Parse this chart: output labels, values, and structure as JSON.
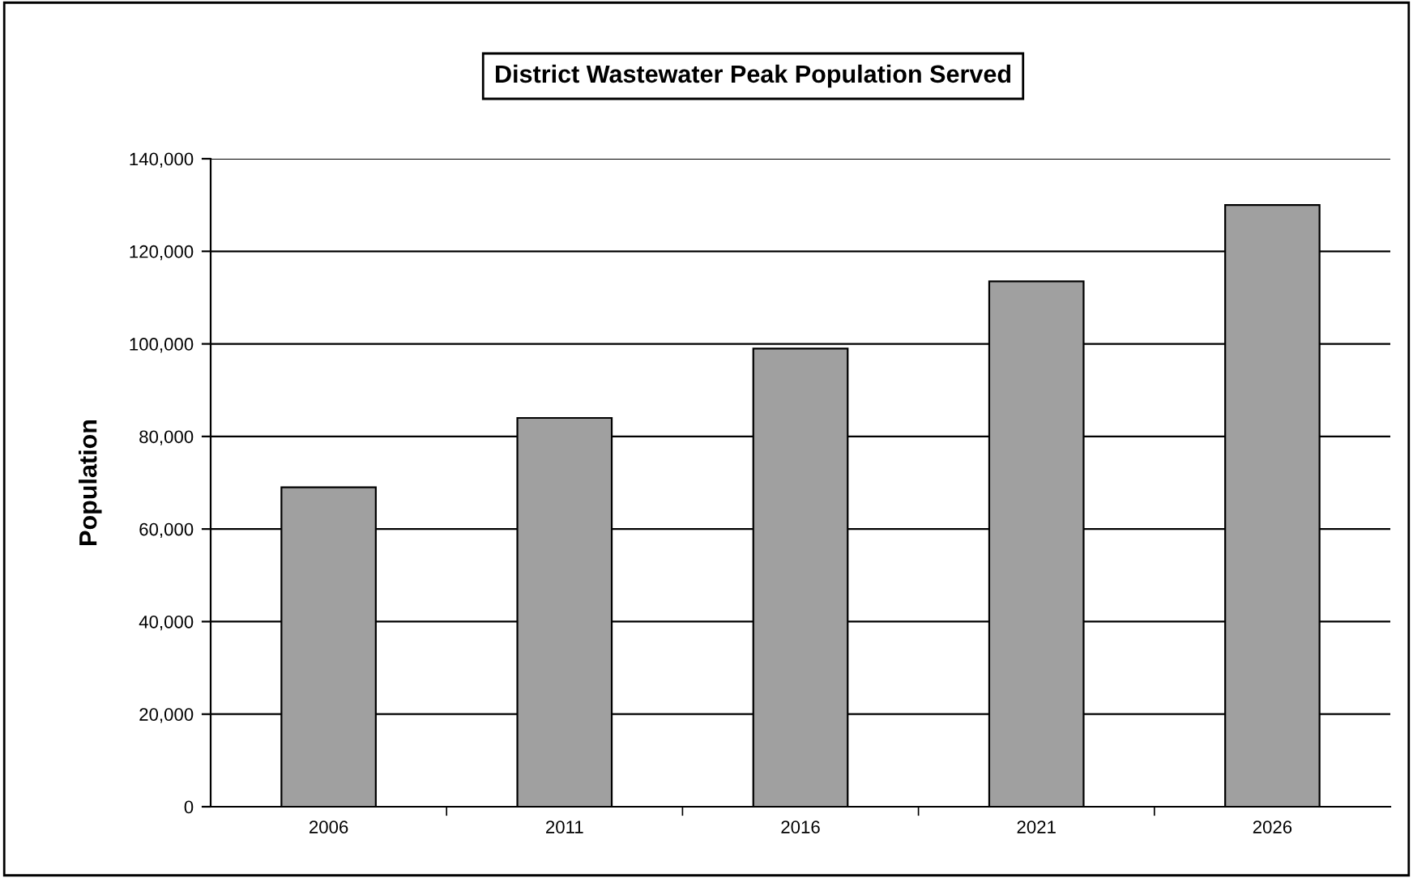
{
  "chart_data": {
    "type": "bar",
    "title": "District Wastewater Peak Population Served",
    "ylabel": "Population",
    "categories": [
      "2006",
      "2011",
      "2016",
      "2021",
      "2026"
    ],
    "values": [
      69000,
      84000,
      99000,
      113500,
      130000
    ],
    "color": "#a0a0a0",
    "ylim": [
      0,
      140000
    ],
    "yticks": [
      {
        "value": 0,
        "label": "0"
      },
      {
        "value": 20000,
        "label": "20,000"
      },
      {
        "value": 40000,
        "label": "40,000"
      },
      {
        "value": 60000,
        "label": "60,000"
      },
      {
        "value": 80000,
        "label": "80,000"
      },
      {
        "value": 100000,
        "label": "100,000"
      },
      {
        "value": 120000,
        "label": "120,000"
      },
      {
        "value": 140000,
        "label": "140,000"
      }
    ],
    "grid": "y",
    "legend": false
  }
}
